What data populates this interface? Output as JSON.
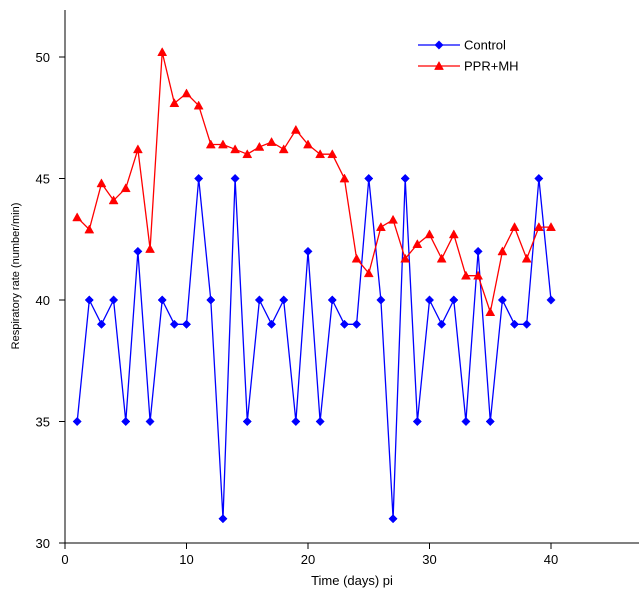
{
  "chart_data": {
    "type": "line",
    "title": "",
    "xlabel": "Time (days) pi",
    "ylabel": "Respiratory rate (number/min)",
    "xlim": [
      0,
      47
    ],
    "ylim": [
      30,
      52
    ],
    "xticks": [
      0,
      10,
      20,
      30,
      40
    ],
    "yticks": [
      30,
      35,
      40,
      45,
      50
    ],
    "grid": false,
    "legend_position": "top-right",
    "series": [
      {
        "name": "Control",
        "color": "#0000FF",
        "marker": "diamond",
        "x": [
          1,
          2,
          3,
          4,
          5,
          6,
          7,
          8,
          9,
          10,
          11,
          12,
          13,
          14,
          15,
          16,
          17,
          18,
          19,
          20,
          21,
          22,
          23,
          24,
          25,
          26,
          27,
          28,
          29,
          30,
          31,
          32,
          33,
          34,
          35,
          36,
          37,
          38,
          39,
          40
        ],
        "values": [
          35,
          40,
          39,
          40,
          35,
          42,
          35,
          40,
          39,
          39,
          45,
          40,
          31,
          45,
          35,
          40,
          39,
          40,
          35,
          42,
          35,
          40,
          39,
          39,
          45,
          40,
          31,
          45,
          35,
          40,
          39,
          40,
          35,
          42,
          35,
          40,
          39,
          39,
          45,
          40
        ]
      },
      {
        "name": "PPR+MH",
        "color": "#FF0000",
        "marker": "triangle",
        "x": [
          1,
          2,
          3,
          4,
          5,
          6,
          7,
          8,
          9,
          10,
          11,
          12,
          13,
          14,
          15,
          16,
          17,
          18,
          19,
          20,
          21,
          22,
          23,
          24,
          25,
          26,
          27,
          28,
          29,
          30,
          31,
          32,
          33,
          34,
          35,
          36,
          37,
          38,
          39,
          40
        ],
        "values": [
          43.4,
          42.9,
          44.8,
          44.1,
          44.6,
          46.2,
          42.1,
          50.2,
          48.1,
          48.5,
          48,
          46.4,
          46.4,
          46.2,
          46,
          46.3,
          46.5,
          46.2,
          47,
          46.4,
          46,
          46,
          45,
          41.7,
          41.1,
          43,
          43.3,
          41.7,
          42.3,
          42.7,
          41.7,
          42.7,
          41,
          41,
          39.5,
          42,
          43,
          41.7,
          43,
          43
        ]
      }
    ]
  }
}
